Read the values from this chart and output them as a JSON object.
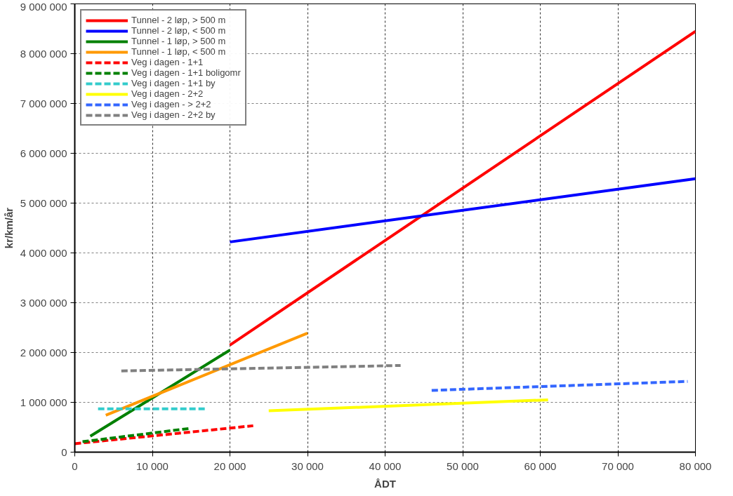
{
  "chart_data": {
    "type": "line",
    "xlabel": "ÅDT",
    "ylabel": "kr/km/år",
    "xlim": [
      0,
      80000
    ],
    "ylim": [
      0,
      9000000
    ],
    "xticks": [
      {
        "value": 0,
        "label": "0"
      },
      {
        "value": 10000,
        "label": "10 000"
      },
      {
        "value": 20000,
        "label": "20 000"
      },
      {
        "value": 30000,
        "label": "30 000"
      },
      {
        "value": 40000,
        "label": "40 000"
      },
      {
        "value": 50000,
        "label": "50 000"
      },
      {
        "value": 60000,
        "label": "60 000"
      },
      {
        "value": 70000,
        "label": "70 000"
      },
      {
        "value": 80000,
        "label": "80 000"
      }
    ],
    "yticks": [
      {
        "value": 0,
        "label": "0"
      },
      {
        "value": 1000000,
        "label": "1 000 000"
      },
      {
        "value": 2000000,
        "label": "2 000 000"
      },
      {
        "value": 3000000,
        "label": "3 000 000"
      },
      {
        "value": 4000000,
        "label": "4 000 000"
      },
      {
        "value": 5000000,
        "label": "5 000 000"
      },
      {
        "value": 6000000,
        "label": "6 000 000"
      },
      {
        "value": 7000000,
        "label": "7 000 000"
      },
      {
        "value": 8000000,
        "label": "8 000 000"
      },
      {
        "value": 9000000,
        "label": "9 000 000"
      }
    ],
    "grid": true,
    "legend": "top left",
    "marker": "none",
    "series": [
      {
        "name": "Tunnel - 2 løp, > 500 m",
        "color": "#ff0000",
        "x": [
          20000,
          80000
        ],
        "values": [
          2150000,
          8450000
        ],
        "line_style": "solid"
      },
      {
        "name": "Tunnel - 2 løp, < 500 m",
        "color": "#0000ff",
        "x": [
          20000,
          80000
        ],
        "values": [
          4220000,
          5490000
        ],
        "line_style": "solid"
      },
      {
        "name": "Tunnel - 1 løp, > 500 m",
        "color": "#008000",
        "x": [
          2000,
          20000
        ],
        "values": [
          320000,
          2050000
        ],
        "line_style": "solid"
      },
      {
        "name": "Tunnel - 1 løp, < 500 m",
        "color": "#ff9900",
        "x": [
          4000,
          30000
        ],
        "values": [
          740000,
          2390000
        ],
        "line_style": "solid"
      },
      {
        "name": "Veg i dagen - 1+1",
        "color": "#ff0000",
        "x": [
          0,
          23000
        ],
        "values": [
          170000,
          530000
        ],
        "line_style": "dashed"
      },
      {
        "name": "Veg i dagen - 1+1 boligomr",
        "color": "#008000",
        "x": [
          1000,
          15000
        ],
        "values": [
          210000,
          480000
        ],
        "line_style": "dashed"
      },
      {
        "name": "Veg i dagen - 1+1 by",
        "color": "#33cccc",
        "x": [
          3000,
          17000
        ],
        "values": [
          870000,
          870000
        ],
        "line_style": "dashed"
      },
      {
        "name": "Veg i dagen - 2+2",
        "color": "#ffff00",
        "x": [
          25000,
          61000
        ],
        "values": [
          830000,
          1050000
        ],
        "line_style": "solid"
      },
      {
        "name": "Veg i dagen - > 2+2",
        "color": "#3366ff",
        "x": [
          46000,
          79000
        ],
        "values": [
          1240000,
          1420000
        ],
        "line_style": "dashed"
      },
      {
        "name": "Veg i dagen - 2+2 by",
        "color": "#808080",
        "x": [
          6000,
          42000
        ],
        "values": [
          1630000,
          1740000
        ],
        "line_style": "dashed"
      }
    ]
  }
}
